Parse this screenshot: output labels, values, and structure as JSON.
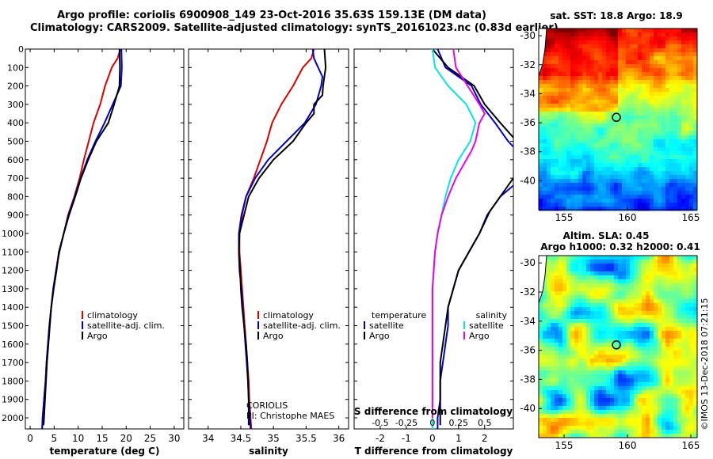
{
  "header": {
    "line1": "Argo profile: coriolis 6900908_149 23-Oct-2016 35.63S 159.13E (DM data)",
    "line2": "Climatology: CARS2009. Satellite-adjusted climatology: synTS_20161023.nc (0.83d earlier)"
  },
  "colors": {
    "climatology": "#dd0000",
    "satellite": "#0000cc",
    "argo": "#000000",
    "sat_salinity": "#00e5e5",
    "clim_salinity": "#ee00ee"
  },
  "chart_data": [
    {
      "type": "line",
      "xlabel": "temperature (deg C)",
      "ylabel": "",
      "xlim": [
        -1,
        32
      ],
      "ylim": [
        2060,
        0
      ],
      "xticks": [
        0,
        5,
        10,
        15,
        20,
        25,
        30
      ],
      "yticks": [
        0,
        100,
        200,
        300,
        400,
        500,
        600,
        700,
        800,
        900,
        1000,
        1100,
        1200,
        1300,
        1400,
        1500,
        1600,
        1700,
        1800,
        1900,
        2000
      ],
      "legend": [
        "climatology",
        "satellite-adj. clim.",
        "Argo"
      ],
      "series": [
        {
          "name": "climatology",
          "points": [
            [
              18.8,
              0
            ],
            [
              18.2,
              50
            ],
            [
              17.0,
              100
            ],
            [
              15.6,
              200
            ],
            [
              14.6,
              300
            ],
            [
              13.2,
              400
            ],
            [
              12.2,
              500
            ],
            [
              11.2,
              600
            ],
            [
              10.3,
              700
            ],
            [
              9.2,
              800
            ],
            [
              7.9,
              900
            ],
            [
              7.0,
              1000
            ],
            [
              6.0,
              1100
            ],
            [
              5.4,
              1200
            ],
            [
              4.8,
              1300
            ],
            [
              4.4,
              1400
            ],
            [
              4.0,
              1500
            ],
            [
              3.7,
              1600
            ],
            [
              3.4,
              1700
            ],
            [
              3.2,
              1800
            ],
            [
              2.9,
              1900
            ],
            [
              2.6,
              2000
            ],
            [
              2.5,
              2060
            ]
          ]
        },
        {
          "name": "satellite-adj. clim.",
          "points": [
            [
              19.0,
              0
            ],
            [
              19.1,
              100
            ],
            [
              18.9,
              200
            ],
            [
              17.2,
              300
            ],
            [
              15.5,
              400
            ],
            [
              13.6,
              500
            ],
            [
              11.9,
              600
            ],
            [
              10.5,
              700
            ],
            [
              9.3,
              800
            ],
            [
              8.0,
              900
            ],
            [
              7.0,
              1000
            ],
            [
              6.1,
              1100
            ],
            [
              5.4,
              1200
            ],
            [
              4.8,
              1300
            ],
            [
              4.4,
              1400
            ],
            [
              4.0,
              1500
            ],
            [
              3.7,
              1600
            ],
            [
              3.4,
              1700
            ],
            [
              3.2,
              1800
            ],
            [
              2.9,
              1900
            ],
            [
              2.6,
              2000
            ],
            [
              2.5,
              2060
            ]
          ]
        },
        {
          "name": "Argo",
          "points": [
            [
              18.6,
              0
            ],
            [
              18.7,
              100
            ],
            [
              18.6,
              200
            ],
            [
              17.5,
              300
            ],
            [
              16.3,
              400
            ],
            [
              13.8,
              500
            ],
            [
              12.1,
              600
            ],
            [
              10.6,
              700
            ],
            [
              9.4,
              800
            ],
            [
              8.1,
              900
            ],
            [
              7.0,
              1000
            ],
            [
              6.0,
              1100
            ],
            [
              5.5,
              1200
            ],
            [
              4.9,
              1300
            ],
            [
              4.4,
              1400
            ],
            [
              4.1,
              1500
            ],
            [
              3.8,
              1600
            ],
            [
              3.5,
              1700
            ],
            [
              3.3,
              1800
            ],
            [
              3.1,
              1900
            ],
            [
              2.9,
              2000
            ],
            [
              2.8,
              2040
            ]
          ]
        }
      ]
    },
    {
      "type": "line",
      "xlabel": "salinity",
      "ylabel": "",
      "xlim": [
        33.7,
        36.15
      ],
      "ylim": [
        2060,
        0
      ],
      "xticks": [
        34,
        34.5,
        35,
        35.5,
        36
      ],
      "legend": [
        "climatology",
        "satellite-adj. clim.",
        "Argo"
      ],
      "series": [
        {
          "name": "climatology",
          "points": [
            [
              35.62,
              0
            ],
            [
              35.58,
              50
            ],
            [
              35.45,
              100
            ],
            [
              35.3,
              200
            ],
            [
              35.12,
              300
            ],
            [
              34.98,
              400
            ],
            [
              34.9,
              500
            ],
            [
              34.8,
              600
            ],
            [
              34.7,
              700
            ],
            [
              34.58,
              800
            ],
            [
              34.52,
              900
            ],
            [
              34.48,
              1000
            ],
            [
              34.48,
              1100
            ],
            [
              34.5,
              1200
            ],
            [
              34.52,
              1300
            ],
            [
              34.54,
              1400
            ],
            [
              34.56,
              1500
            ],
            [
              34.58,
              1600
            ],
            [
              34.6,
              1700
            ],
            [
              34.62,
              1800
            ],
            [
              34.63,
              1900
            ],
            [
              34.65,
              2000
            ],
            [
              34.66,
              2060
            ]
          ]
        },
        {
          "name": "satellite-adj. clim.",
          "points": [
            [
              35.6,
              0
            ],
            [
              35.62,
              50
            ],
            [
              35.75,
              150
            ],
            [
              35.73,
              200
            ],
            [
              35.65,
              300
            ],
            [
              35.48,
              400
            ],
            [
              35.2,
              500
            ],
            [
              34.92,
              600
            ],
            [
              34.72,
              700
            ],
            [
              34.58,
              800
            ],
            [
              34.51,
              900
            ],
            [
              34.47,
              1000
            ],
            [
              34.47,
              1100
            ],
            [
              34.48,
              1200
            ],
            [
              34.51,
              1300
            ],
            [
              34.53,
              1400
            ],
            [
              34.55,
              1500
            ],
            [
              34.57,
              1600
            ],
            [
              34.59,
              1700
            ],
            [
              34.61,
              1800
            ],
            [
              34.62,
              1900
            ],
            [
              34.64,
              2000
            ],
            [
              34.65,
              2060
            ]
          ]
        },
        {
          "name": "Argo",
          "points": [
            [
              35.78,
              0
            ],
            [
              35.8,
              100
            ],
            [
              35.76,
              200
            ],
            [
              35.75,
              250
            ],
            [
              35.62,
              300
            ],
            [
              35.62,
              350
            ],
            [
              35.5,
              400
            ],
            [
              35.3,
              500
            ],
            [
              35.0,
              600
            ],
            [
              34.78,
              700
            ],
            [
              34.62,
              800
            ],
            [
              34.55,
              900
            ],
            [
              34.48,
              1000
            ],
            [
              34.47,
              1100
            ],
            [
              34.49,
              1200
            ],
            [
              34.5,
              1300
            ],
            [
              34.52,
              1400
            ],
            [
              34.55,
              1500
            ],
            [
              34.58,
              1600
            ],
            [
              34.6,
              1700
            ],
            [
              34.61,
              1800
            ],
            [
              34.62,
              1900
            ],
            [
              34.62,
              2000
            ],
            [
              34.62,
              2040
            ]
          ]
        }
      ],
      "annotations": [
        "CORIOLIS",
        "PI: Christophe MAES"
      ]
    },
    {
      "type": "line",
      "xlabel": "T difference from climatology",
      "xlabel_top": "S difference from climatology",
      "ylabel": "",
      "xlim": [
        -3,
        3.1
      ],
      "ylim": [
        2060,
        0
      ],
      "xticks": [
        -2,
        -1,
        0,
        1,
        2
      ],
      "xticklabels_top": [
        "-0.5",
        "-0.25",
        "0",
        "0.25",
        "0.5"
      ],
      "legend": [
        "temperature",
        "satellite",
        "Argo",
        "salinity",
        "satellite",
        "Argo"
      ],
      "series": [
        {
          "name": "satellite",
          "points": [
            [
              0.2,
              0
            ],
            [
              0.5,
              100
            ],
            [
              1.5,
              200
            ],
            [
              1.85,
              300
            ],
            [
              2.4,
              400
            ],
            [
              2.9,
              500
            ],
            [
              3.1,
              530
            ]
          ]
        },
        {
          "name": "Argo",
          "points": [
            [
              0.0,
              0
            ],
            [
              0.6,
              100
            ],
            [
              1.6,
              200
            ],
            [
              2.0,
              300
            ],
            [
              2.6,
              400
            ],
            [
              3.1,
              480
            ]
          ]
        },
        {
          "name": "satellite",
          "points": [
            [
              3.1,
              740
            ],
            [
              2.6,
              800
            ],
            [
              2.1,
              900
            ],
            [
              1.8,
              1000
            ],
            [
              1.4,
              1100
            ],
            [
              1.0,
              1200
            ],
            [
              0.8,
              1300
            ],
            [
              0.6,
              1400
            ],
            [
              0.6,
              1500
            ],
            [
              0.5,
              1600
            ],
            [
              0.4,
              1700
            ],
            [
              0.3,
              1800
            ],
            [
              0.3,
              1900
            ],
            [
              0.2,
              2000
            ],
            [
              0.2,
              2060
            ]
          ]
        },
        {
          "name": "Argo",
          "points": [
            [
              3.1,
              700
            ],
            [
              2.7,
              780
            ],
            [
              2.2,
              880
            ],
            [
              1.8,
              1000
            ],
            [
              1.4,
              1100
            ],
            [
              1.0,
              1200
            ],
            [
              0.8,
              1300
            ],
            [
              0.6,
              1400
            ],
            [
              0.5,
              1500
            ],
            [
              0.4,
              1600
            ],
            [
              0.3,
              1700
            ],
            [
              0.3,
              1800
            ],
            [
              0.3,
              1900
            ],
            [
              0.3,
              2000
            ],
            [
              0.3,
              2040
            ]
          ]
        },
        {
          "name": "satellite",
          "points": [
            [
              0.0,
              0
            ],
            [
              0.1,
              100
            ],
            [
              0.6,
              200
            ],
            [
              1.3,
              300
            ],
            [
              1.65,
              400
            ],
            [
              1.45,
              500
            ],
            [
              1.0,
              600
            ],
            [
              0.7,
              700
            ],
            [
              0.5,
              800
            ],
            [
              0.35,
              900
            ],
            [
              0.2,
              1000
            ],
            [
              0.1,
              1100
            ],
            [
              0.05,
              1200
            ],
            [
              0.0,
              1300
            ],
            [
              0.0,
              1400
            ],
            [
              0.0,
              1500
            ],
            [
              0.0,
              1600
            ],
            [
              0.0,
              1700
            ],
            [
              0.0,
              1800
            ],
            [
              0.0,
              1900
            ],
            [
              0.0,
              2000
            ],
            [
              0.0,
              2060
            ]
          ]
        },
        {
          "name": "Argo",
          "points": [
            [
              0.8,
              0
            ],
            [
              0.9,
              100
            ],
            [
              1.35,
              200
            ],
            [
              1.8,
              300
            ],
            [
              2.0,
              350
            ],
            [
              1.8,
              400
            ],
            [
              1.65,
              500
            ],
            [
              1.5,
              550
            ],
            [
              1.3,
              600
            ],
            [
              0.9,
              700
            ],
            [
              0.6,
              800
            ],
            [
              0.35,
              900
            ],
            [
              0.2,
              1000
            ],
            [
              0.1,
              1100
            ],
            [
              0.05,
              1200
            ],
            [
              0.0,
              1300
            ],
            [
              0.0,
              1400
            ],
            [
              0.0,
              1500
            ],
            [
              0.0,
              1600
            ],
            [
              0.0,
              1700
            ],
            [
              0.0,
              1800
            ],
            [
              0.0,
              1900
            ],
            [
              0.0,
              2000
            ]
          ]
        }
      ]
    },
    {
      "type": "heatmap",
      "title": "sat. SST: 18.8 Argo: 18.9",
      "xlim": [
        153,
        165.5
      ],
      "ylim": [
        -42,
        -29.5
      ],
      "xticks": [
        155,
        160,
        165
      ],
      "yticks": [
        -30,
        -32,
        -34,
        -36,
        -38,
        -40
      ],
      "marker": {
        "lon": 159.13,
        "lat": -35.63
      }
    },
    {
      "type": "heatmap",
      "title": "Altim. SLA: 0.45",
      "subtitle": "Argo h1000: 0.32 h2000: 0.41",
      "xlim": [
        153,
        165.5
      ],
      "ylim": [
        -42,
        -29.5
      ],
      "xticks": [
        155,
        160,
        165
      ],
      "yticks": [
        -30,
        -32,
        -34,
        -36,
        -38,
        -40
      ],
      "marker": {
        "lon": 159.13,
        "lat": -35.63
      }
    }
  ],
  "footer_stamp": "©IMOS 13-Dec-2018 07:21:15"
}
